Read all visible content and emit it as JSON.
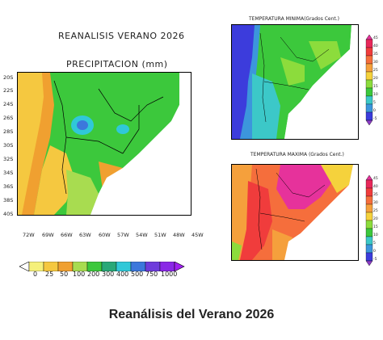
{
  "page_title": "REANALISIS VERANO 2026",
  "caption": "Reanálisis del Verano 2026",
  "precip_map": {
    "title": "PRECIPITACION (mm)",
    "lat_labels": [
      "20S",
      "22S",
      "24S",
      "26S",
      "28S",
      "30S",
      "32S",
      "34S",
      "36S",
      "38S",
      "40S"
    ],
    "lon_labels": [
      "72W",
      "69W",
      "66W",
      "63W",
      "60W",
      "57W",
      "54W",
      "51W",
      "48W",
      "45W"
    ],
    "colorbar": {
      "labels": [
        "0",
        "25",
        "50",
        "100",
        "200",
        "300",
        "400",
        "500",
        "750",
        "1000"
      ],
      "colors": [
        "#ffffff",
        "#f5f07a",
        "#f5c840",
        "#f0a030",
        "#a8dc50",
        "#3cc83c",
        "#28a878",
        "#30c8d8",
        "#3c78dc",
        "#6e3cdc",
        "#a020f0"
      ]
    }
  },
  "tmin_map": {
    "title": "TEMPERATURA MINIMA(Grados Cent.)",
    "colorbar": {
      "labels": [
        "45",
        "40",
        "35",
        "30",
        "25",
        "20",
        "15",
        "10",
        "5",
        "0",
        "-5"
      ],
      "colors": [
        "#e6329b",
        "#e8285a",
        "#f03c3c",
        "#f56e3c",
        "#f5a03c",
        "#f5d23c",
        "#8cdc3c",
        "#3cc83c",
        "#3cc8c8",
        "#3c96dc",
        "#3c3cdc",
        "#8c3cc8"
      ]
    }
  },
  "tmax_map": {
    "title": "TEMPERATURA MAXIMA (Grados Cent.)",
    "colorbar": {
      "labels": [
        "45",
        "40",
        "35",
        "30",
        "25",
        "20",
        "15",
        "10",
        "5",
        "0",
        "-5"
      ]
    }
  }
}
